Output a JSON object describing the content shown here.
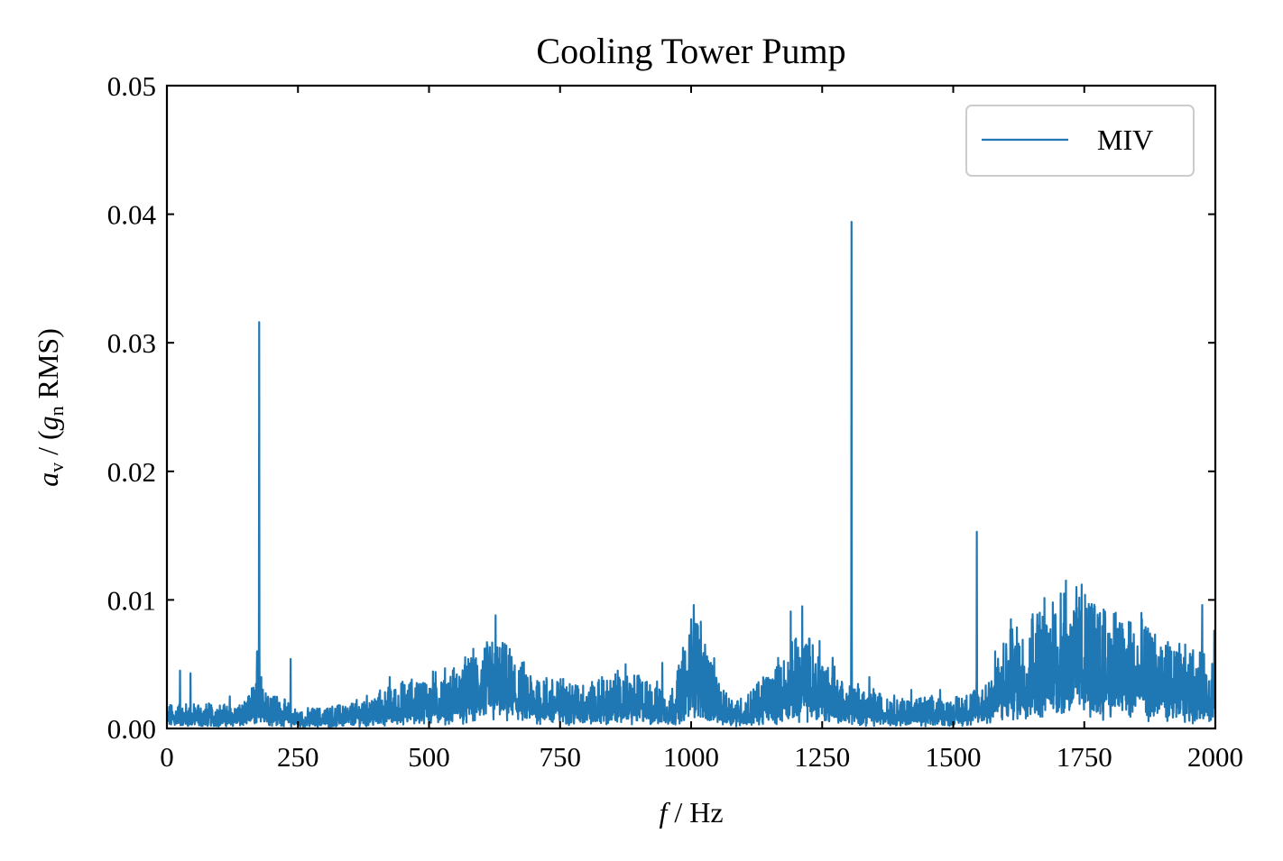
{
  "chart_data": {
    "type": "line",
    "title": "Cooling Tower Pump",
    "xlabel": {
      "var": "f",
      "unit": " / Hz"
    },
    "ylabel": {
      "var": "a",
      "var_sub": "v",
      "mid": " / (",
      "var2": "g",
      "var2_sub": "n",
      "end": " RMS)"
    },
    "xlim": [
      0,
      2000
    ],
    "ylim": [
      0,
      0.05
    ],
    "xticks": [
      "0",
      "250",
      "500",
      "750",
      "1000",
      "1250",
      "1500",
      "1750",
      "2000"
    ],
    "yticks": [
      "0.00",
      "0.01",
      "0.02",
      "0.03",
      "0.04",
      "0.05"
    ],
    "grid": false,
    "legend_position": "top-right",
    "series": [
      {
        "name": "MIV",
        "color": "#1f77b4",
        "noise_floor": [
          [
            0,
            0.0008
          ],
          [
            150,
            0.0008
          ],
          [
            175,
            0.002
          ],
          [
            200,
            0.0012
          ],
          [
            250,
            0.0006
          ],
          [
            350,
            0.0008
          ],
          [
            450,
            0.0015
          ],
          [
            550,
            0.002
          ],
          [
            625,
            0.003
          ],
          [
            700,
            0.0018
          ],
          [
            800,
            0.0015
          ],
          [
            900,
            0.0018
          ],
          [
            960,
            0.0012
          ],
          [
            1010,
            0.004
          ],
          [
            1060,
            0.0012
          ],
          [
            1100,
            0.001
          ],
          [
            1180,
            0.0025
          ],
          [
            1220,
            0.003
          ],
          [
            1300,
            0.0015
          ],
          [
            1400,
            0.001
          ],
          [
            1500,
            0.001
          ],
          [
            1560,
            0.0015
          ],
          [
            1600,
            0.003
          ],
          [
            1700,
            0.0045
          ],
          [
            1750,
            0.0045
          ],
          [
            1850,
            0.0035
          ],
          [
            1950,
            0.0025
          ],
          [
            2000,
            0.0025
          ]
        ],
        "peaks": [
          [
            25,
            0.0045
          ],
          [
            45,
            0.0043
          ],
          [
            60,
            0.0018
          ],
          [
            120,
            0.0025
          ],
          [
            165,
            0.0022
          ],
          [
            172,
            0.006
          ],
          [
            176,
            0.0316
          ],
          [
            180,
            0.004
          ],
          [
            236,
            0.0054
          ],
          [
            330,
            0.0018
          ],
          [
            350,
            0.0017
          ],
          [
            425,
            0.004
          ],
          [
            450,
            0.0028
          ],
          [
            540,
            0.0035
          ],
          [
            580,
            0.004
          ],
          [
            600,
            0.0045
          ],
          [
            620,
            0.005
          ],
          [
            627,
            0.0088
          ],
          [
            640,
            0.0062
          ],
          [
            660,
            0.004
          ],
          [
            710,
            0.0035
          ],
          [
            760,
            0.003
          ],
          [
            830,
            0.004
          ],
          [
            860,
            0.0045
          ],
          [
            875,
            0.005
          ],
          [
            945,
            0.0051
          ],
          [
            1000,
            0.0085
          ],
          [
            1005,
            0.0096
          ],
          [
            1010,
            0.007
          ],
          [
            1190,
            0.0091
          ],
          [
            1200,
            0.007
          ],
          [
            1212,
            0.0095
          ],
          [
            1225,
            0.007
          ],
          [
            1245,
            0.0068
          ],
          [
            1270,
            0.0055
          ],
          [
            1306,
            0.0394
          ],
          [
            1340,
            0.004
          ],
          [
            1420,
            0.003
          ],
          [
            1475,
            0.003
          ],
          [
            1545,
            0.0153
          ],
          [
            1580,
            0.006
          ],
          [
            1610,
            0.0085
          ],
          [
            1650,
            0.0085
          ],
          [
            1665,
            0.009
          ],
          [
            1690,
            0.0098
          ],
          [
            1705,
            0.0105
          ],
          [
            1715,
            0.0115
          ],
          [
            1735,
            0.011
          ],
          [
            1745,
            0.0112
          ],
          [
            1760,
            0.009
          ],
          [
            1790,
            0.0085
          ],
          [
            1810,
            0.009
          ],
          [
            1860,
            0.0085
          ],
          [
            1880,
            0.007
          ],
          [
            1960,
            0.004
          ],
          [
            1975,
            0.0096
          ],
          [
            1998,
            0.0076
          ]
        ]
      }
    ]
  }
}
